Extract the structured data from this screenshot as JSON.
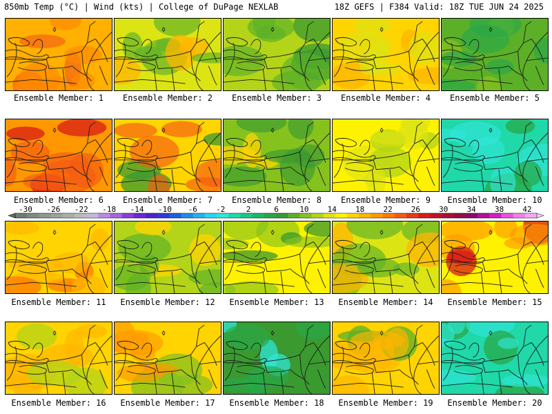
{
  "header": {
    "left": "850mb Temp (°C) | Wind (kts) | College of DuPage NEXLAB",
    "right": "18Z GEFS | F384 Valid: 18Z TUE JUN 24 2025"
  },
  "colorbar": {
    "labels": [
      "-30",
      "-26",
      "-22",
      "-18",
      "-14",
      "-10",
      "-6",
      "-2",
      "2",
      "6",
      "10",
      "14",
      "18",
      "22",
      "26",
      "30",
      "34",
      "38",
      "42"
    ],
    "colors": [
      "#6e7a72",
      "#7f8a82",
      "#8e9890",
      "#9ba49c",
      "#a9b0aa",
      "#b7bcb8",
      "#c3b8d8",
      "#b98be0",
      "#a564e0",
      "#8a3fd8",
      "#6a2ad0",
      "#4b25c8",
      "#2f3cd8",
      "#1a62e0",
      "#1f8de8",
      "#22b4ee",
      "#28d4f0",
      "#2fe6d8",
      "#20d8a8",
      "#18c888",
      "#1bb86a",
      "#28a848",
      "#3a9a30",
      "#5cb028",
      "#86c21e",
      "#b3d418",
      "#dde414",
      "#fff200",
      "#ffd400",
      "#ffb600",
      "#ff9800",
      "#ff7a00",
      "#f45a12",
      "#e63a14",
      "#d81c18",
      "#c01224",
      "#a81030",
      "#901040",
      "#8a0a6a",
      "#b0109a",
      "#d020c0",
      "#e454dc",
      "#f080ec",
      "#f6a6f4"
    ]
  },
  "panels": [
    {
      "label": "Ensemble Member: 1",
      "base": "#ffb000",
      "blotch": "#ff8800",
      "hot": "#f46a12"
    },
    {
      "label": "Ensemble Member: 2",
      "base": "#dde414",
      "blotch": "#5cb028",
      "hot": "#ffb600"
    },
    {
      "label": "Ensemble Member: 3",
      "base": "#b3d418",
      "blotch": "#5cb028",
      "hot": "#3a9a30"
    },
    {
      "label": "Ensemble Member: 4",
      "base": "#ffd400",
      "blotch": "#dde414",
      "hot": "#ffb600"
    },
    {
      "label": "Ensemble Member: 5",
      "base": "#5cb028",
      "blotch": "#28a848",
      "hot": "#86c21e"
    },
    {
      "label": "Ensemble Member: 6",
      "base": "#ff9800",
      "blotch": "#f45a12",
      "hot": "#d81c18"
    },
    {
      "label": "Ensemble Member: 7",
      "base": "#ffd400",
      "blotch": "#f45a12",
      "hot": "#3a9a30"
    },
    {
      "label": "Ensemble Member: 8",
      "base": "#86c21e",
      "blotch": "#3a9a30",
      "hot": "#ffd400"
    },
    {
      "label": "Ensemble Member: 9",
      "base": "#fff200",
      "blotch": "#dde414",
      "hot": "#b3d418"
    },
    {
      "label": "Ensemble Member: 10",
      "base": "#20d8a8",
      "blotch": "#2fe6d8",
      "hot": "#28a848"
    },
    {
      "label": "Ensemble Member: 11",
      "base": "#ffd400",
      "blotch": "#ffb600",
      "hot": "#ff7a00"
    },
    {
      "label": "Ensemble Member: 12",
      "base": "#b3d418",
      "blotch": "#5cb028",
      "hot": "#ffd400"
    },
    {
      "label": "Ensemble Member: 13",
      "base": "#fff200",
      "blotch": "#86c21e",
      "hot": "#3a9a30"
    },
    {
      "label": "Ensemble Member: 14",
      "base": "#dde414",
      "blotch": "#5cb028",
      "hot": "#ffb600"
    },
    {
      "label": "Ensemble Member: 15",
      "base": "#fff200",
      "blotch": "#ff9800",
      "hot": "#d81c18"
    },
    {
      "label": "Ensemble Member: 16",
      "base": "#ffd400",
      "blotch": "#ffb600",
      "hot": "#b3d418"
    },
    {
      "label": "Ensemble Member: 17",
      "base": "#ffd400",
      "blotch": "#ff9800",
      "hot": "#86c21e"
    },
    {
      "label": "Ensemble Member: 18",
      "base": "#3a9a30",
      "blotch": "#28a848",
      "hot": "#2fe6d8"
    },
    {
      "label": "Ensemble Member: 19",
      "base": "#ffd400",
      "blotch": "#ffb600",
      "hot": "#5cb028"
    },
    {
      "label": "Ensemble Member: 20",
      "base": "#20d8a8",
      "blotch": "#2fe6d8",
      "hot": "#28a848"
    }
  ]
}
